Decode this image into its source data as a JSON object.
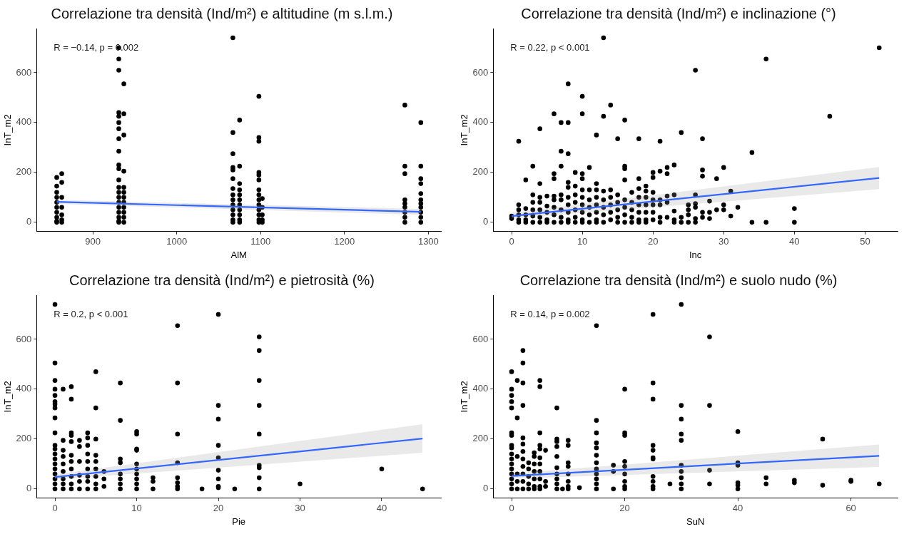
{
  "chart_data": [
    {
      "type": "scatter",
      "title": "Correlazione tra densità (Ind/m²) e altitudine (m s.l.m.)",
      "xlabel": "AlM",
      "ylabel": "InT_m2",
      "annotations": [
        "R = −0.14, p = 0.002"
      ],
      "xlim": [
        833,
        1315
      ],
      "xticks": [
        900,
        1000,
        1100,
        1200,
        1300
      ],
      "ylim": [
        -37,
        777
      ],
      "yticks": [
        0,
        200,
        400,
        600
      ],
      "marker": "circle",
      "series": [
        {
          "color": "#000000",
          "x": [
            857,
            857,
            857,
            857,
            857,
            857,
            857,
            857,
            857,
            857,
            863,
            863,
            863,
            863,
            863,
            863,
            863,
            931,
            931,
            931,
            931,
            931,
            931,
            931,
            931,
            931,
            931,
            931,
            931,
            931,
            931,
            931,
            931,
            931,
            931,
            931,
            931,
            931,
            937,
            937,
            937,
            937,
            937,
            937,
            937,
            937,
            937,
            937,
            937,
            937,
            1067,
            1067,
            1067,
            1067,
            1067,
            1067,
            1067,
            1067,
            1067,
            1067,
            1067,
            1067,
            1067,
            1067,
            1075,
            1075,
            1075,
            1075,
            1075,
            1075,
            1075,
            1075,
            1075,
            1075,
            1075,
            1098,
            1098,
            1098,
            1098,
            1098,
            1098,
            1098,
            1098,
            1098,
            1098,
            1098,
            1098,
            1098,
            1098,
            1102,
            1102,
            1102,
            1102,
            1102,
            1272,
            1272,
            1272,
            1272,
            1272,
            1272,
            1272,
            1272,
            1272,
            1291,
            1291,
            1291,
            1291,
            1291,
            1291,
            1291,
            1291,
            1291,
            1291,
            1291
          ],
          "values": [
            180,
            145,
            120,
            100,
            80,
            60,
            40,
            20,
            5,
            0,
            195,
            160,
            100,
            60,
            30,
            10,
            0,
            700,
            655,
            610,
            440,
            425,
            400,
            375,
            335,
            285,
            230,
            215,
            170,
            140,
            120,
            100,
            80,
            60,
            40,
            20,
            5,
            0,
            555,
            435,
            350,
            205,
            140,
            120,
            100,
            80,
            60,
            40,
            20,
            0,
            740,
            360,
            275,
            220,
            210,
            175,
            135,
            110,
            90,
            70,
            50,
            30,
            10,
            0,
            410,
            225,
            155,
            130,
            110,
            90,
            70,
            50,
            30,
            10,
            0,
            505,
            340,
            325,
            200,
            190,
            170,
            130,
            110,
            90,
            70,
            50,
            30,
            10,
            0,
            95,
            60,
            30,
            10,
            0,
            470,
            225,
            195,
            90,
            75,
            60,
            40,
            20,
            0,
            400,
            225,
            175,
            155,
            115,
            90,
            75,
            60,
            40,
            20,
            0
          ]
        },
        {
          "type": "line",
          "marker": "none",
          "color": "#3366ff",
          "x": [
            857,
            1291
          ],
          "values": [
            82,
            42
          ],
          "lower": [
            74,
            30
          ],
          "upper": [
            90,
            54
          ]
        }
      ]
    },
    {
      "type": "scatter",
      "title": "Correlazione tra densità (Ind/m²) e inclinazione (°)",
      "xlabel": "Inc",
      "ylabel": "InT_m2",
      "annotations": [
        "R = 0.22, p < 0.001"
      ],
      "xlim": [
        -2.6,
        54.6
      ],
      "xticks": [
        0,
        10,
        20,
        30,
        40,
        50
      ],
      "ylim": [
        -37,
        777
      ],
      "yticks": [
        0,
        200,
        400,
        600
      ],
      "marker": "circle",
      "series": [
        {
          "color": "#000000",
          "x": [
            0,
            0,
            1,
            1,
            1,
            1,
            1,
            1,
            2,
            2,
            2,
            2,
            2,
            3,
            3,
            3,
            3,
            3,
            3,
            4,
            4,
            4,
            4,
            4,
            4,
            4,
            5,
            5,
            5,
            5,
            5,
            6,
            6,
            6,
            6,
            6,
            6,
            6,
            6,
            7,
            7,
            7,
            7,
            7,
            7,
            7,
            7,
            8,
            8,
            8,
            8,
            8,
            8,
            8,
            8,
            8,
            8,
            9,
            9,
            9,
            9,
            9,
            9,
            9,
            10,
            10,
            10,
            10,
            10,
            10,
            10,
            10,
            10,
            10,
            11,
            11,
            11,
            11,
            11,
            11,
            12,
            12,
            12,
            12,
            12,
            12,
            12,
            12,
            13,
            13,
            13,
            13,
            13,
            13,
            13,
            14,
            14,
            14,
            14,
            14,
            14,
            15,
            15,
            15,
            15,
            15,
            15,
            16,
            16,
            16,
            16,
            16,
            16,
            16,
            16,
            17,
            17,
            17,
            17,
            17,
            18,
            18,
            18,
            18,
            18,
            18,
            18,
            18,
            19,
            19,
            19,
            19,
            19,
            19,
            19,
            20,
            20,
            20,
            20,
            20,
            20,
            20,
            21,
            21,
            21,
            21,
            21,
            21,
            22,
            22,
            22,
            22,
            22,
            23,
            23,
            23,
            23,
            23,
            24,
            24,
            24,
            25,
            25,
            25,
            25,
            26,
            26,
            26,
            26,
            26,
            26,
            27,
            27,
            27,
            27,
            27,
            28,
            28,
            28,
            29,
            29,
            30,
            30,
            30,
            31,
            31,
            32,
            34,
            34,
            36,
            36,
            40,
            40,
            45,
            52
          ],
          "values": [
            15,
            25,
            325,
            70,
            50,
            30,
            10,
            0,
            170,
            55,
            30,
            10,
            0,
            225,
            110,
            80,
            50,
            25,
            0,
            375,
            155,
            100,
            80,
            50,
            20,
            0,
            105,
            65,
            40,
            10,
            0,
            435,
            195,
            175,
            105,
            90,
            60,
            30,
            0,
            400,
            285,
            225,
            110,
            90,
            50,
            20,
            0,
            555,
            400,
            275,
            160,
            140,
            100,
            70,
            40,
            10,
            0,
            200,
            145,
            110,
            80,
            50,
            20,
            0,
            505,
            435,
            195,
            175,
            130,
            100,
            70,
            40,
            10,
            0,
            220,
            130,
            90,
            60,
            30,
            0,
            350,
            155,
            130,
            100,
            70,
            40,
            10,
            0,
            740,
            425,
            125,
            90,
            60,
            30,
            0,
            470,
            130,
            100,
            70,
            40,
            10,
            335,
            110,
            80,
            50,
            20,
            0,
            410,
            225,
            215,
            170,
            90,
            60,
            30,
            0,
            120,
            80,
            50,
            20,
            0,
            335,
            175,
            135,
            100,
            70,
            40,
            10,
            0,
            145,
            125,
            100,
            70,
            40,
            10,
            0,
            200,
            180,
            120,
            90,
            70,
            40,
            10,
            325,
            205,
            90,
            70,
            20,
            0,
            220,
            195,
            105,
            80,
            20,
            230,
            110,
            45,
            10,
            0,
            360,
            20,
            0,
            70,
            50,
            30,
            0,
            610,
            110,
            75,
            60,
            15,
            0,
            335,
            210,
            185,
            40,
            20,
            85,
            40,
            15,
            175,
            50,
            220,
            70,
            50,
            125,
            25,
            60,
            280,
            0,
            655,
            0,
            55,
            0,
            425,
            700
          ]
        },
        {
          "type": "line",
          "marker": "none",
          "color": "#3366ff",
          "x": [
            0,
            52
          ],
          "values": [
            25,
            178
          ],
          "lower": [
            15,
            133
          ],
          "upper": [
            38,
            222
          ]
        }
      ]
    },
    {
      "type": "scatter",
      "title": "Correlazione tra densità (Ind/m²) e pietrosità (%)",
      "xlabel": "Pie",
      "ylabel": "InT_m2",
      "annotations": [
        "R = 0.2, p < 0.001"
      ],
      "xlim": [
        -2.25,
        47.25
      ],
      "xticks": [
        0,
        10,
        20,
        30,
        40
      ],
      "ylim": [
        -37,
        777
      ],
      "yticks": [
        0,
        200,
        400,
        600
      ],
      "marker": "circle",
      "series": [
        {
          "color": "#000000",
          "x": [
            0,
            0,
            0,
            0,
            0,
            0,
            0,
            0,
            0,
            0,
            0,
            0,
            0,
            0,
            0,
            0,
            0,
            0,
            0,
            0,
            1,
            1,
            1,
            1,
            1,
            1,
            1,
            1,
            1,
            2,
            2,
            2,
            2,
            2,
            2,
            2,
            2,
            2,
            2,
            2,
            3,
            3,
            3,
            3,
            3,
            3,
            4,
            4,
            4,
            4,
            4,
            4,
            4,
            4,
            4,
            5,
            5,
            5,
            5,
            5,
            5,
            5,
            5,
            5,
            6,
            6,
            6,
            8,
            8,
            8,
            8,
            8,
            8,
            8,
            8,
            10,
            10,
            10,
            10,
            10,
            10,
            10,
            10,
            10,
            10,
            12,
            12,
            12,
            15,
            15,
            15,
            15,
            15,
            15,
            15,
            15,
            18,
            20,
            20,
            20,
            20,
            20,
            20,
            20,
            20,
            20,
            22,
            25,
            25,
            25,
            25,
            25,
            25,
            25,
            25,
            25,
            30,
            40,
            45
          ],
          "values": [
            740,
            505,
            435,
            400,
            375,
            350,
            340,
            325,
            285,
            225,
            175,
            160,
            140,
            120,
            100,
            80,
            60,
            40,
            20,
            0,
            400,
            195,
            155,
            130,
            100,
            70,
            40,
            20,
            0,
            410,
            360,
            225,
            215,
            190,
            135,
            110,
            80,
            50,
            20,
            0,
            195,
            170,
            110,
            55,
            30,
            0,
            225,
            205,
            175,
            140,
            110,
            80,
            50,
            30,
            0,
            470,
            325,
            200,
            135,
            110,
            80,
            50,
            20,
            0,
            70,
            40,
            10,
            425,
            275,
            120,
            105,
            60,
            40,
            20,
            0,
            230,
            220,
            160,
            155,
            100,
            80,
            60,
            40,
            20,
            0,
            45,
            30,
            0,
            655,
            425,
            220,
            105,
            45,
            25,
            10,
            0,
            0,
            700,
            335,
            280,
            175,
            125,
            75,
            40,
            10,
            5,
            0,
            610,
            555,
            435,
            335,
            220,
            95,
            85,
            45,
            0,
            20,
            80,
            0
          ]
        },
        {
          "type": "line",
          "marker": "none",
          "color": "#3366ff",
          "x": [
            0,
            45
          ],
          "values": [
            48,
            202
          ],
          "lower": [
            38,
            145
          ],
          "upper": [
            58,
            260
          ]
        }
      ]
    },
    {
      "type": "scatter",
      "title": "Correlazione tra densità (Ind/m²) e suolo nudo (%)",
      "xlabel": "SuN",
      "ylabel": "InT_m2",
      "annotations": [
        "R = 0.14, p = 0.002"
      ],
      "xlim": [
        -3.25,
        68.25
      ],
      "xticks": [
        0,
        20,
        40,
        60
      ],
      "ylim": [
        -37,
        777
      ],
      "yticks": [
        0,
        200,
        400,
        600
      ],
      "marker": "circle",
      "series": [
        {
          "color": "#000000",
          "x": [
            0,
            0,
            0,
            0,
            0,
            0,
            0,
            0,
            0,
            0,
            0,
            0,
            0,
            0,
            0,
            0,
            0,
            1,
            1,
            1,
            1,
            1,
            1,
            2,
            2,
            2,
            2,
            2,
            2,
            2,
            2,
            2,
            2,
            2,
            2,
            3,
            3,
            3,
            3,
            3,
            4,
            4,
            4,
            4,
            4,
            4,
            4,
            5,
            5,
            5,
            5,
            5,
            5,
            5,
            5,
            5,
            5,
            5,
            6,
            6,
            6,
            8,
            8,
            8,
            8,
            8,
            8,
            8,
            8,
            8,
            8,
            9,
            10,
            10,
            10,
            10,
            10,
            10,
            10,
            10,
            12,
            15,
            15,
            15,
            15,
            15,
            15,
            15,
            15,
            15,
            15,
            15,
            15,
            18,
            18,
            18,
            20,
            20,
            20,
            20,
            20,
            20,
            20,
            20,
            20,
            25,
            25,
            25,
            25,
            25,
            25,
            25,
            25,
            25,
            25,
            25,
            28,
            30,
            30,
            30,
            30,
            30,
            30,
            30,
            30,
            30,
            30,
            35,
            35,
            35,
            35,
            40,
            40,
            40,
            40,
            40,
            40,
            45,
            45,
            50,
            50,
            55,
            55,
            60,
            60,
            65
          ],
          "values": [
            470,
            400,
            375,
            350,
            325,
            225,
            215,
            175,
            165,
            140,
            120,
            100,
            80,
            60,
            40,
            20,
            0,
            435,
            285,
            130,
            60,
            30,
            0,
            555,
            505,
            425,
            335,
            205,
            180,
            150,
            120,
            90,
            60,
            30,
            0,
            105,
            80,
            50,
            20,
            0,
            145,
            130,
            100,
            70,
            40,
            10,
            0,
            435,
            410,
            225,
            175,
            160,
            125,
            100,
            70,
            40,
            10,
            0,
            155,
            30,
            10,
            325,
            200,
            190,
            170,
            130,
            85,
            60,
            40,
            20,
            0,
            0,
            195,
            175,
            105,
            90,
            60,
            30,
            10,
            0,
            5,
            655,
            275,
            225,
            185,
            165,
            135,
            105,
            80,
            60,
            40,
            20,
            0,
            95,
            70,
            0,
            400,
            225,
            215,
            110,
            90,
            60,
            30,
            10,
            0,
            700,
            425,
            360,
            175,
            155,
            125,
            120,
            50,
            30,
            10,
            0,
            20,
            740,
            335,
            280,
            220,
            195,
            95,
            70,
            45,
            20,
            0,
            610,
            335,
            75,
            20,
            230,
            105,
            95,
            25,
            15,
            0,
            45,
            20,
            35,
            25,
            200,
            15,
            35,
            30,
            20
          ]
        },
        {
          "type": "line",
          "marker": "none",
          "color": "#3366ff",
          "x": [
            0,
            65
          ],
          "values": [
            52,
            133
          ],
          "lower": [
            42,
            88
          ],
          "upper": [
            62,
            178
          ]
        }
      ]
    }
  ]
}
